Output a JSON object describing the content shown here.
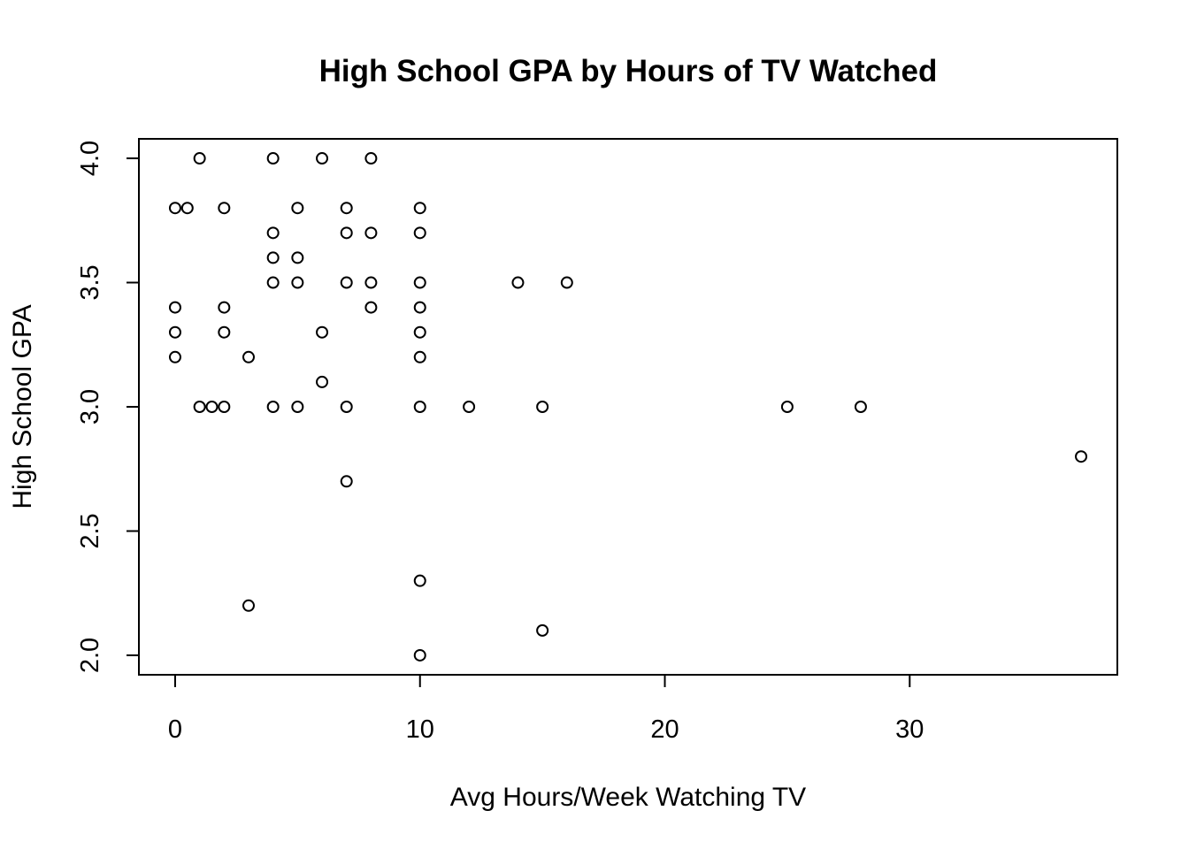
{
  "chart_data": {
    "type": "scatter",
    "title": "High School GPA by Hours of TV Watched",
    "xlabel": "Avg Hours/Week Watching TV",
    "ylabel": "High School GPA",
    "xlim": [
      -1.48,
      38.48
    ],
    "ylim": [
      1.9216,
      4.0784
    ],
    "x_ticks": [
      0,
      10,
      20,
      30
    ],
    "y_ticks": [
      2.0,
      2.5,
      3.0,
      3.5,
      4.0
    ],
    "x_tick_labels": [
      "0",
      "10",
      "20",
      "30"
    ],
    "y_tick_labels": [
      "2.0",
      "2.5",
      "3.0",
      "3.5",
      "4.0"
    ],
    "grid": false,
    "legend": "none",
    "marker": "open-circle",
    "points": [
      {
        "x": 1,
        "y": 4.0
      },
      {
        "x": 4,
        "y": 4.0
      },
      {
        "x": 6,
        "y": 4.0
      },
      {
        "x": 8,
        "y": 4.0
      },
      {
        "x": 0,
        "y": 3.8
      },
      {
        "x": 0.5,
        "y": 3.8
      },
      {
        "x": 2,
        "y": 3.8
      },
      {
        "x": 5,
        "y": 3.8
      },
      {
        "x": 7,
        "y": 3.8
      },
      {
        "x": 10,
        "y": 3.8
      },
      {
        "x": 4,
        "y": 3.7
      },
      {
        "x": 7,
        "y": 3.7
      },
      {
        "x": 8,
        "y": 3.7
      },
      {
        "x": 10,
        "y": 3.7
      },
      {
        "x": 4,
        "y": 3.6
      },
      {
        "x": 5,
        "y": 3.6
      },
      {
        "x": 4,
        "y": 3.5
      },
      {
        "x": 5,
        "y": 3.5
      },
      {
        "x": 7,
        "y": 3.5
      },
      {
        "x": 8,
        "y": 3.5
      },
      {
        "x": 10,
        "y": 3.5
      },
      {
        "x": 14,
        "y": 3.5
      },
      {
        "x": 16,
        "y": 3.5
      },
      {
        "x": 0,
        "y": 3.4
      },
      {
        "x": 2,
        "y": 3.4
      },
      {
        "x": 8,
        "y": 3.4
      },
      {
        "x": 10,
        "y": 3.4
      },
      {
        "x": 0,
        "y": 3.3
      },
      {
        "x": 2,
        "y": 3.3
      },
      {
        "x": 6,
        "y": 3.3
      },
      {
        "x": 10,
        "y": 3.3
      },
      {
        "x": 0,
        "y": 3.2
      },
      {
        "x": 3,
        "y": 3.2
      },
      {
        "x": 10,
        "y": 3.2
      },
      {
        "x": 6,
        "y": 3.1
      },
      {
        "x": 1,
        "y": 3.0
      },
      {
        "x": 1.5,
        "y": 3.0
      },
      {
        "x": 2,
        "y": 3.0
      },
      {
        "x": 4,
        "y": 3.0
      },
      {
        "x": 5,
        "y": 3.0
      },
      {
        "x": 7,
        "y": 3.0
      },
      {
        "x": 10,
        "y": 3.0
      },
      {
        "x": 12,
        "y": 3.0
      },
      {
        "x": 15,
        "y": 3.0
      },
      {
        "x": 25,
        "y": 3.0
      },
      {
        "x": 28,
        "y": 3.0
      },
      {
        "x": 37,
        "y": 2.8
      },
      {
        "x": 7,
        "y": 2.7
      },
      {
        "x": 10,
        "y": 2.3
      },
      {
        "x": 3,
        "y": 2.2
      },
      {
        "x": 15,
        "y": 2.1
      },
      {
        "x": 10,
        "y": 2.0
      }
    ]
  }
}
